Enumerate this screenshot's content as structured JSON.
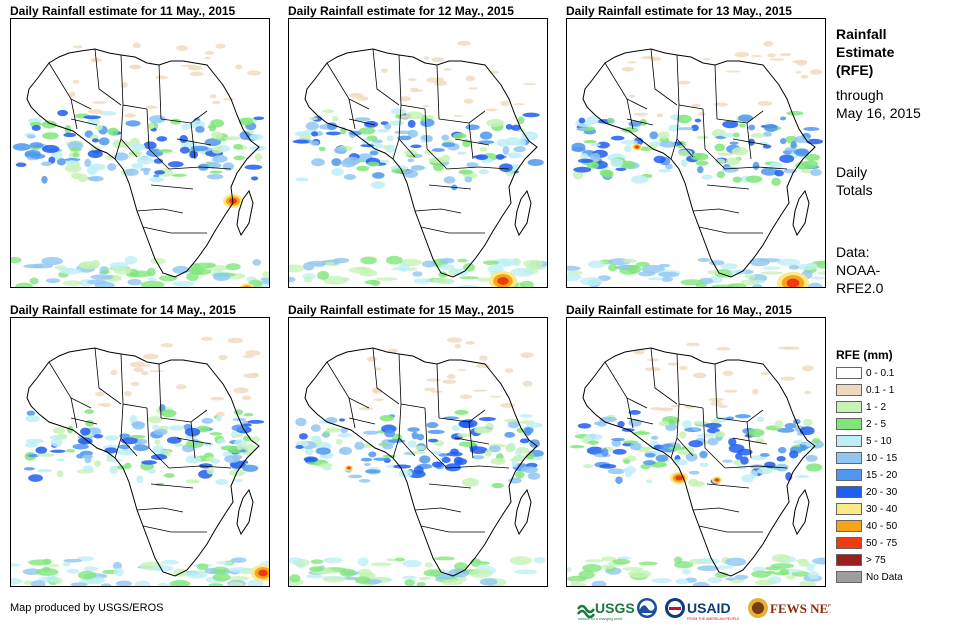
{
  "panels": [
    {
      "title": "Daily Rainfall estimate for 11 May., 2015"
    },
    {
      "title": "Daily Rainfall estimate for 12 May., 2015"
    },
    {
      "title": "Daily Rainfall estimate for 13 May., 2015"
    },
    {
      "title": "Daily Rainfall estimate for 14 May., 2015"
    },
    {
      "title": "Daily Rainfall estimate for 15 May., 2015"
    },
    {
      "title": "Daily Rainfall estimate for 16 May., 2015"
    }
  ],
  "sidebar": {
    "title_lines": [
      "Rainfall",
      "Estimate",
      "(RFE)"
    ],
    "through_lines": [
      "through",
      "May 16, 2015"
    ],
    "totals_lines": [
      "Daily",
      "Totals"
    ],
    "data_lines": [
      "Data:",
      "NOAA-",
      "RFE2.0"
    ]
  },
  "legend": {
    "title": "RFE (mm)",
    "items": [
      {
        "label": "0 - 0.1",
        "color": "#ffffff"
      },
      {
        "label": "0.1 - 1",
        "color": "#efd9bd"
      },
      {
        "label": "1 - 2",
        "color": "#c6f2b5"
      },
      {
        "label": "2 - 5",
        "color": "#80e67a"
      },
      {
        "label": "5 - 10",
        "color": "#bdeff6"
      },
      {
        "label": "10 - 15",
        "color": "#8fc6f2"
      },
      {
        "label": "15 - 20",
        "color": "#4f97f0"
      },
      {
        "label": "20 - 30",
        "color": "#1e5ef0"
      },
      {
        "label": "30 - 40",
        "color": "#fce98a"
      },
      {
        "label": "40 - 50",
        "color": "#f7a418"
      },
      {
        "label": "50 - 75",
        "color": "#ef3b12"
      },
      {
        "label": "> 75",
        "color": "#9c1f1f"
      },
      {
        "label": "No Data",
        "color": "#9e9e9e"
      }
    ]
  },
  "credit": "Map produced by USGS/EROS",
  "logos": {
    "usgs": "USGS",
    "usgs_tagline": "science for a changing world",
    "usaid": "USAID",
    "usaid_tagline": "FROM THE AMERICAN PEOPLE",
    "fewsnet": "FEWS NET"
  },
  "colors": {
    "coast": "#000000",
    "border": "#000000"
  }
}
